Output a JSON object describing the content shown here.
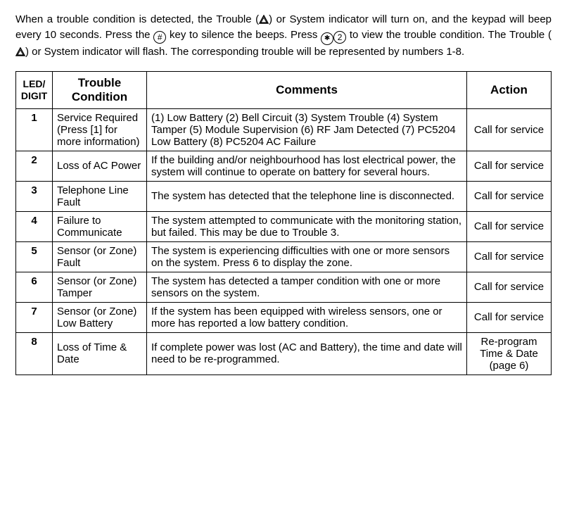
{
  "intro": {
    "part1": "When a trouble condition is detected, the Trouble (",
    "part2": ") or System indicator will turn on, and the keypad will beep every 10 seconds. Press the ",
    "part3": " key to silence the beeps. Press ",
    "part4": " to view the trouble condition. The Trouble (",
    "part5": ") or System indicator will flash. The corresponding trouble will be represented by numbers 1-8."
  },
  "keys": {
    "hash": "#",
    "star": "✱",
    "two": "2"
  },
  "headers": {
    "led": "LED/ DIGIT",
    "cond": "Trouble Condition",
    "comm": "Comments",
    "act": "Action"
  },
  "rows": [
    {
      "digit": "1",
      "cond": "Service Required (Press [1] for more information)",
      "comm": "(1) Low Battery (2) Bell Circuit (3) System Trouble (4) System Tamper (5) Module Supervision (6) RF Jam Detected (7) PC5204 Low Battery (8) PC5204 AC Failure",
      "act": "Call for service"
    },
    {
      "digit": "2",
      "cond": "Loss of AC Power",
      "comm": "If the building and/or neighbourhood has lost electrical power, the system will continue to operate on battery for several hours.",
      "act": "Call for service"
    },
    {
      "digit": "3",
      "cond": "Telephone Line Fault",
      "comm": "The system has detected that the telephone line is disconnected.",
      "act": "Call for service"
    },
    {
      "digit": "4",
      "cond": "Failure to Communicate",
      "comm": "The system attempted to communicate with the monitoring station, but failed. This may be due to Trouble 3.",
      "act": "Call for service"
    },
    {
      "digit": "5",
      "cond": "Sensor (or Zone) Fault",
      "comm": "The system is experiencing difficulties with one or more sensors on the system. Press 6 to display the zone.",
      "act": "Call for service"
    },
    {
      "digit": "6",
      "cond": "Sensor (or Zone) Tamper",
      "comm": "The system has detected a tamper condition with one or more sensors on the system.",
      "act": "Call for service"
    },
    {
      "digit": "7",
      "cond": "Sensor (or Zone) Low Battery",
      "comm": "If the system has been equipped with wireless sensors, one or more has reported a low battery condition.",
      "act": "Call for service"
    },
    {
      "digit": "8",
      "cond": "Loss of Time & Date",
      "comm": "If complete power was lost (AC and Battery), the time and date will need to be re-programmed.",
      "act": "Re-program Time & Date (page 6)"
    }
  ]
}
